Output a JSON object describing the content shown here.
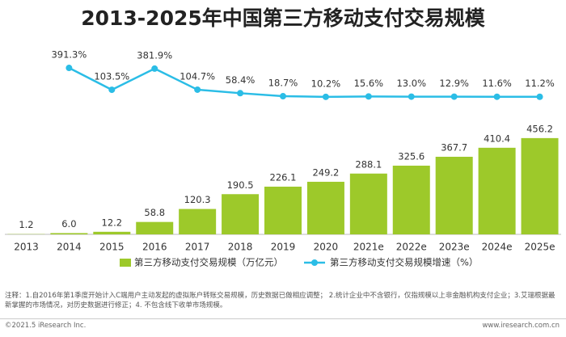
{
  "chart_data": {
    "type": "bar-line",
    "title": "2013-2025年中国第三方移动支付交易规模",
    "categories": [
      "2013",
      "2014",
      "2015",
      "2016",
      "2017",
      "2018",
      "2019",
      "2020",
      "2021e",
      "2022e",
      "2023e",
      "2024e",
      "2025e"
    ],
    "series": [
      {
        "name": "第三方移动支付交易规模（万亿元）",
        "type": "bar",
        "color": "#9dc92a",
        "values": [
          1.2,
          6.0,
          12.2,
          58.8,
          120.3,
          190.5,
          226.1,
          249.2,
          288.1,
          325.6,
          367.7,
          410.4,
          456.2
        ],
        "value_labels": [
          "1.2",
          "6.0",
          "12.2",
          "58.8",
          "120.3",
          "190.5",
          "226.1",
          "249.2",
          "288.1",
          "325.6",
          "367.7",
          "410.4",
          "456.2"
        ]
      },
      {
        "name": "第三方移动支付交易规模增速（%）",
        "type": "line",
        "axis": "y2",
        "color": "#2bbde6",
        "values": [
          null,
          391.3,
          103.5,
          381.9,
          104.7,
          58.4,
          18.7,
          10.2,
          15.6,
          13.0,
          12.9,
          11.6,
          11.2
        ],
        "value_labels": [
          null,
          "391.3%",
          "103.5%",
          "381.9%",
          "104.7%",
          "58.4%",
          "18.7%",
          "10.2%",
          "15.6%",
          "13.0%",
          "12.9%",
          "11.6%",
          "11.2%"
        ]
      }
    ],
    "ylim": [
      0,
      900
    ],
    "y2lim": [
      -1800,
      700
    ],
    "legend": "bottom",
    "note": "注释：1.自2016年第1季度开始计入C端用户主动发起的虚拟账户转账交易规模，历史数据已做相应调整； 2.统计企业中不含银行，仅指规模以上非金融机构支付企业；3.艾瑞根据最新掌握的市场情况，对历史数据进行修正；4. 不包含线下收单市场规模。",
    "source_left": "©2021.5 iResearch Inc.",
    "source_right": "www.iresearch.com.cn"
  }
}
